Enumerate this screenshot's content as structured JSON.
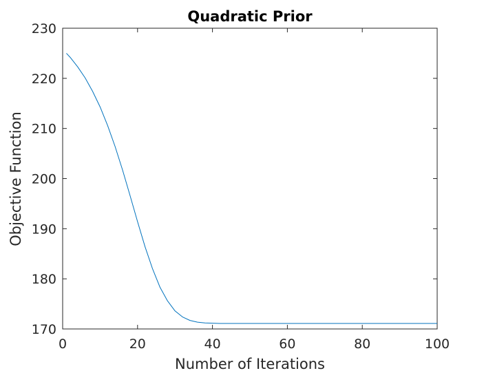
{
  "chart_data": {
    "type": "line",
    "title": "Quadratic Prior",
    "xlabel": "Number of Iterations",
    "ylabel": "Objective Function",
    "xlim": [
      0,
      100
    ],
    "ylim": [
      170,
      230
    ],
    "xticks": [
      0,
      20,
      40,
      60,
      80,
      100
    ],
    "yticks": [
      170,
      180,
      190,
      200,
      210,
      220,
      230
    ],
    "grid": false,
    "series": [
      {
        "color": "#0072bd",
        "x": [
          1,
          2,
          4,
          6,
          8,
          10,
          12,
          14,
          16,
          18,
          20,
          22,
          24,
          26,
          28,
          30,
          32,
          34,
          36,
          38,
          40,
          42,
          44,
          46,
          48,
          50,
          55,
          60,
          70,
          80,
          90,
          100
        ],
        "y": [
          225,
          224.2,
          222.3,
          220.1,
          217.4,
          214.3,
          210.6,
          206.4,
          201.7,
          196.6,
          191.4,
          186.4,
          182.0,
          178.3,
          175.6,
          173.6,
          172.4,
          171.7,
          171.35,
          171.2,
          171.15,
          171.1,
          171.1,
          171.1,
          171.1,
          171.1,
          171.1,
          171.1,
          171.1,
          171.1,
          171.1,
          171.1
        ]
      }
    ]
  }
}
